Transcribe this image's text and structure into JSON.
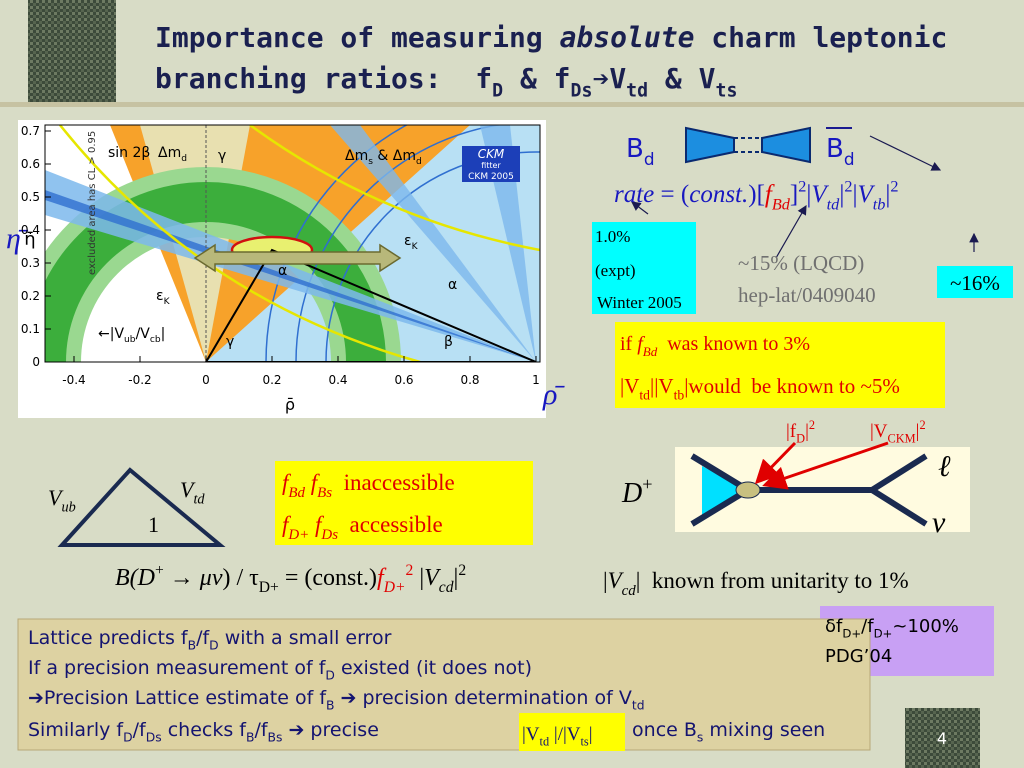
{
  "title": {
    "line1": [
      "Importance of measuring ",
      "absolute",
      " charm leptonic"
    ],
    "line2": [
      "branching ratios:  f",
      "D",
      " & f",
      "Ds",
      "➔",
      "V",
      "td",
      " & V",
      "ts"
    ]
  },
  "ckm_plot": {
    "xticks": [
      -0.4,
      -0.2,
      0,
      0.2,
      0.4,
      0.6,
      0.8,
      1
    ],
    "yticks": [
      0,
      0.1,
      0.2,
      0.3,
      0.4,
      0.5,
      0.6,
      0.7
    ],
    "x_label": "ρ̄",
    "y_label": "η̄",
    "vertical_note": "excluded area has CL > 0.95",
    "logo": [
      "CKM",
      "fitter",
      "CKM 2005"
    ],
    "labels": {
      "sin2beta": [
        "sin 2β"
      ],
      "dmd": [
        "Δm",
        "d"
      ],
      "gamma_top": [
        "γ"
      ],
      "dms_dmd": [
        "Δm",
        "s",
        " & Δm",
        "d"
      ],
      "epsk_right": [
        "ε",
        "K"
      ],
      "alpha_mid": [
        "α"
      ],
      "epsk_left": [
        "ε",
        "K"
      ],
      "vub_vcb": [
        "←|V",
        "ub",
        "/V",
        "cb",
        "|"
      ],
      "gamma_bottom": [
        "γ"
      ],
      "beta": [
        "β"
      ],
      "alpha_right": [
        "α"
      ]
    }
  },
  "side_labels": {
    "eta": "η̄",
    "rho": "ρ̄"
  },
  "mixing": {
    "bd": [
      "B",
      "d"
    ],
    "bdbar": [
      "B",
      "d"
    ],
    "rate": [
      "rate",
      " = (",
      "const.",
      ")",
      "[",
      "f",
      "Bd",
      "]",
      "2",
      "|",
      "V",
      "td",
      "|",
      "2",
      "|",
      "V",
      "tb",
      "|",
      "2"
    ]
  },
  "expt_box": [
    "1.0%",
    "(expt)",
    "Winter 2005"
  ],
  "lqcd": [
    "~15% (LQCD)",
    "hep-lat/0409040"
  ],
  "ckm_error": "~16%",
  "if_box": {
    "line1": [
      "if ",
      "f",
      "Bd",
      "  was known to 3%"
    ],
    "line2": [
      "|V",
      "td",
      "||V",
      "tb",
      "|",
      "would  be known to ~5%"
    ]
  },
  "decay": {
    "fd_label": [
      "|f",
      "D",
      "|",
      "2"
    ],
    "vckm_label": [
      "|V",
      "CKM",
      "|",
      "2"
    ],
    "meson": [
      "D",
      "+"
    ],
    "lepton": "ℓ",
    "neutrino": "ν"
  },
  "triangle": {
    "vub": [
      "V",
      "ub"
    ],
    "vtd": [
      "V",
      "td"
    ],
    "base": "1"
  },
  "access_box": {
    "line1": [
      "f",
      "Bd",
      " ",
      "f",
      "Bs",
      "  inaccessible"
    ],
    "line2": [
      "f",
      "D+",
      " ",
      "f",
      "Ds",
      "  accessible"
    ]
  },
  "formula": [
    "B(D",
    "+",
    " → ",
    "μν",
    ") / τ",
    "D+",
    " = (const.)",
    "f",
    "D+",
    "2",
    " |",
    "V",
    "cd",
    "|",
    "2"
  ],
  "unitarity": [
    "|",
    "V",
    "cd",
    "|",
    "  known from unitarity to 1%"
  ],
  "pdg_box": {
    "line1": [
      "δf",
      "D+",
      "/f",
      "D+",
      "~100%"
    ],
    "line2": "PDG’04"
  },
  "summary": {
    "line1": [
      "Lattice predicts f",
      "B",
      "/f",
      "D",
      " with a small error"
    ],
    "line2": [
      "If a precision measurement of f",
      "D",
      " existed (it does not)"
    ],
    "line3": [
      "➔Precision Lattice estimate of f",
      "B",
      " ➔ precision determination of V",
      "td"
    ],
    "line4": {
      "before": [
        "Similarly f",
        "D",
        "/f",
        "Ds",
        " checks f",
        "B",
        "/f",
        "Bs",
        " ➔ precise"
      ],
      "ratio": [
        "|V",
        "td",
        " |/|V",
        "ts",
        "|"
      ],
      "after": [
        " once B",
        "s",
        " mixing seen"
      ]
    }
  },
  "page_number": "4"
}
